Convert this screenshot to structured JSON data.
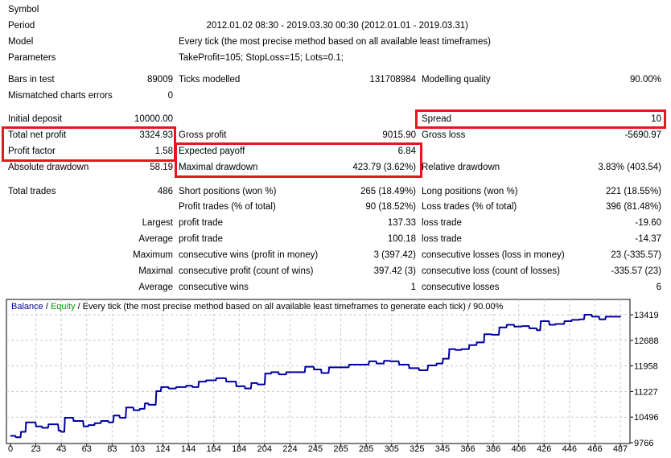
{
  "header_rows": [
    {
      "label": "Symbol",
      "value": ""
    },
    {
      "label": "Period",
      "value": "2012.01.02 08:30 - 2019.03.30 00:30 (2012.01.01 - 2019.03.31)"
    },
    {
      "label": "Model",
      "value": "Every tick (the most precise method based on all available least timeframes)"
    },
    {
      "label": "Parameters",
      "value": "TakeProfit=105; StopLoss=15; Lots=0.1;"
    }
  ],
  "stats_rows": [
    [
      "Bars in test",
      "89009",
      "Ticks modelled",
      "131708984",
      "Modelling quality",
      "90.00%"
    ],
    [
      "Mismatched charts errors",
      "0",
      "",
      "",
      "",
      ""
    ],
    [
      "Initial deposit",
      "10000.00",
      "",
      "",
      "Spread",
      "10"
    ],
    [
      "Total net profit",
      "3324.93",
      "Gross profit",
      "9015.90",
      "Gross loss",
      "-5690.97"
    ],
    [
      "Profit factor",
      "1.58",
      "Expected payoff",
      "6.84",
      "",
      ""
    ],
    [
      "Absolute drawdown",
      "58.19",
      "Maximal drawdown",
      "423.79 (3.62%)",
      "Relative drawdown",
      "3.83% (403.54)"
    ],
    [
      "Total trades",
      "486",
      "Short positions (won %)",
      "265 (18.49%)",
      "Long positions (won %)",
      "221 (18.55%)"
    ],
    [
      "",
      "",
      "Profit trades (% of total)",
      "90 (18.52%)",
      "Loss trades (% of total)",
      "396 (81.48%)"
    ],
    [
      "",
      "Largest",
      "profit trade",
      "137.33",
      "loss trade",
      "-19.60"
    ],
    [
      "",
      "Average",
      "profit trade",
      "100.18",
      "loss trade",
      "-14.37"
    ],
    [
      "",
      "Maximum",
      "consecutive wins (profit in money)",
      "3 (397.42)",
      "consecutive losses (loss in money)",
      "23 (-335.57)"
    ],
    [
      "",
      "Maximal",
      "consecutive profit (count of wins)",
      "397.42 (3)",
      "consecutive loss (count of losses)",
      "-335.57 (23)"
    ],
    [
      "",
      "Average",
      "consecutive wins",
      "1",
      "consecutive losses",
      "6"
    ]
  ],
  "chart_data": {
    "type": "line",
    "legend": {
      "balance": "Balance",
      "sep1": " / ",
      "equity": "Equity",
      "rest": " / Every tick (the most precise method based on all available least timeframes to generate each tick) / 90.00%"
    },
    "colors": {
      "balance": "#0000a0",
      "equity": "#00a000",
      "grid": "#c8c8c8",
      "axis": "#000000"
    },
    "x_ticks": [
      "0",
      "23",
      "43",
      "63",
      "83",
      "103",
      "124",
      "144",
      "164",
      "184",
      "204",
      "224",
      "245",
      "265",
      "285",
      "305",
      "325",
      "345",
      "366",
      "386",
      "406",
      "426",
      "446",
      "466",
      "487"
    ],
    "y_ticks": [
      "13419",
      "12688",
      "11958",
      "11227",
      "10496",
      "9766"
    ],
    "xlim": [
      0,
      487
    ],
    "ylim": [
      9766,
      13419
    ],
    "series": [
      {
        "name": "Balance",
        "x": [
          0,
          4,
          8,
          12,
          20,
          25,
          30,
          38,
          40,
          43,
          50,
          58,
          62,
          67,
          72,
          78,
          82,
          87,
          92,
          98,
          103,
          107,
          110,
          116,
          120,
          126,
          132,
          140,
          145,
          150,
          156,
          164,
          172,
          180,
          187,
          192,
          197,
          203,
          208,
          214,
          220,
          226,
          235,
          242,
          248,
          254,
          262,
          270,
          278,
          286,
          292,
          298,
          303,
          310,
          318,
          326,
          333,
          340,
          345,
          350,
          355,
          360,
          366,
          372,
          378,
          384,
          390,
          396,
          402,
          408,
          414,
          420,
          423,
          430,
          435,
          442,
          448,
          454,
          458,
          464,
          470,
          475,
          487
        ],
        "y": [
          9960,
          9921,
          10076,
          10347,
          10230,
          10192,
          10292,
          10114,
          10076,
          10478,
          10385,
          10230,
          10269,
          10323,
          10385,
          10347,
          10540,
          10478,
          10772,
          10695,
          10734,
          10888,
          10850,
          11237,
          11353,
          11314,
          11353,
          11391,
          11353,
          11508,
          11546,
          11608,
          11508,
          11376,
          11314,
          11469,
          11430,
          11740,
          11778,
          11716,
          11778,
          11778,
          11933,
          11856,
          11755,
          11918,
          11918,
          11995,
          11995,
          12088,
          12026,
          12103,
          12088,
          11995,
          11895,
          11833,
          11972,
          12026,
          12165,
          12436,
          12413,
          12436,
          12552,
          12630,
          12862,
          12847,
          13056,
          13133,
          13079,
          13094,
          13032,
          12978,
          13234,
          13133,
          13156,
          13234,
          13272,
          13288,
          13420,
          13365,
          13288,
          13365,
          13365
        ]
      }
    ]
  }
}
